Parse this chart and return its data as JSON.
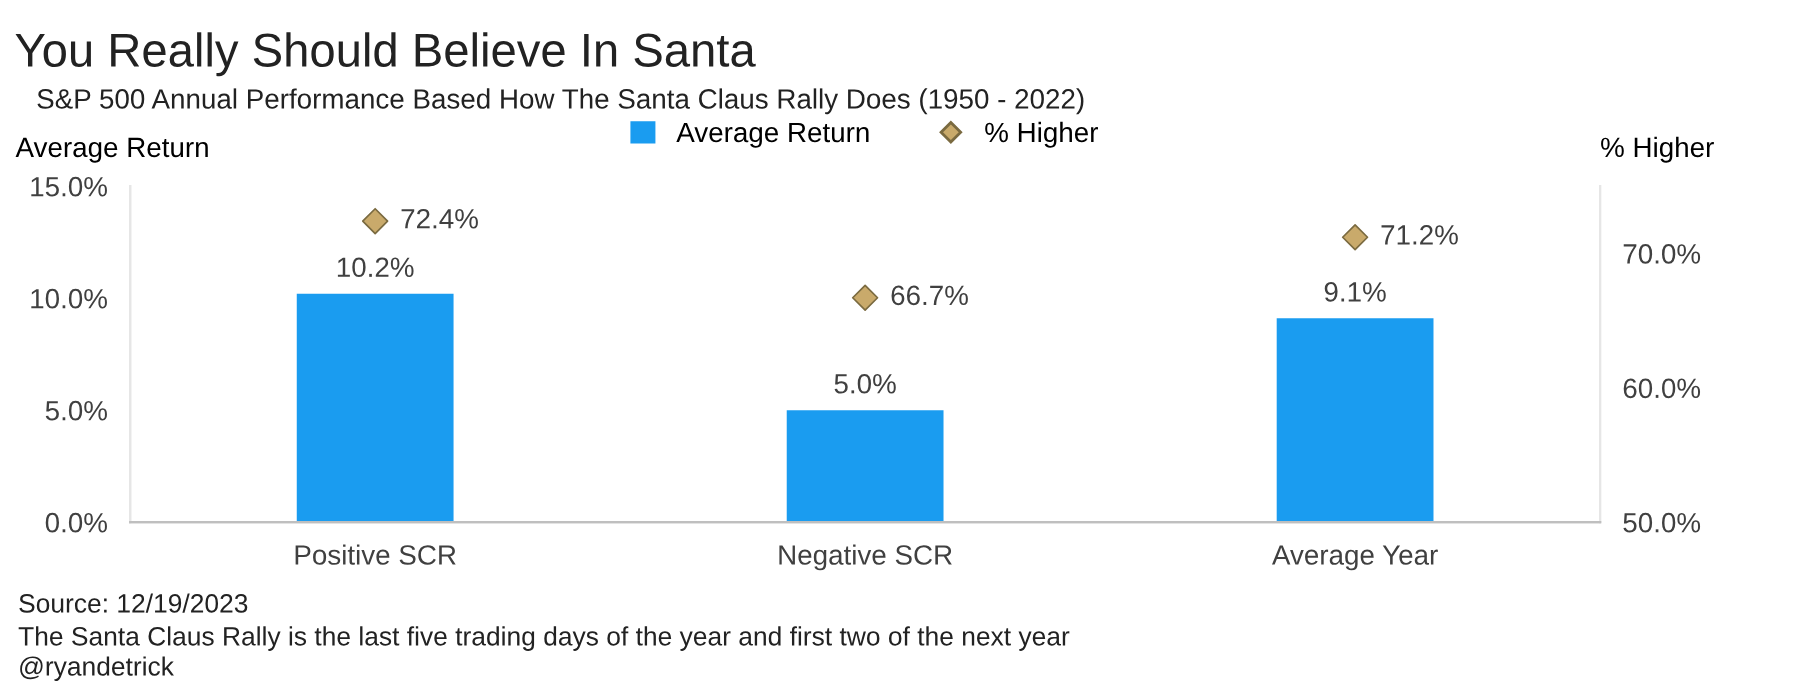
{
  "chart_data": {
    "type": "bar",
    "title": "You Really Should Believe In Santa",
    "subtitle": "S&P 500 Annual Performance Based How The Santa Claus Rally Does (1950 - 2022)",
    "ylabel": "Average Return",
    "y2label": "% Higher",
    "categories": [
      "Positive SCR",
      "Negative SCR",
      "Average Year"
    ],
    "series": [
      {
        "name": "Average Return",
        "color": "#1a9cf0",
        "values": [
          10.2,
          5.0,
          9.1
        ],
        "value_labels": [
          "10.2%",
          "5.0%",
          "9.1%"
        ]
      },
      {
        "name": "% Higher",
        "type": "scatter",
        "axis": "y2",
        "marker": "diamond",
        "color": "#c9aa6b",
        "values": [
          72.4,
          66.7,
          71.2
        ],
        "value_labels": [
          "72.4%",
          "66.7%",
          "71.2%"
        ]
      }
    ],
    "ylim": [
      0,
      15
    ],
    "yticks": [
      {
        "value": 0,
        "label": "0.0%"
      },
      {
        "value": 5,
        "label": "5.0%"
      },
      {
        "value": 10,
        "label": "10.0%"
      },
      {
        "value": 15,
        "label": "15.0%"
      }
    ],
    "y2lim": [
      50,
      75
    ],
    "y2ticks": [
      {
        "value": 50,
        "label": "50.0%"
      },
      {
        "value": 60,
        "label": "60.0%"
      },
      {
        "value": 70,
        "label": "70.0%"
      }
    ],
    "legend": "top",
    "grid": false,
    "annotations": [
      "Source: 12/19/2023",
      "The Santa Claus Rally is the last five trading days of the year and first two of the next year",
      "@ryandetrick"
    ]
  }
}
